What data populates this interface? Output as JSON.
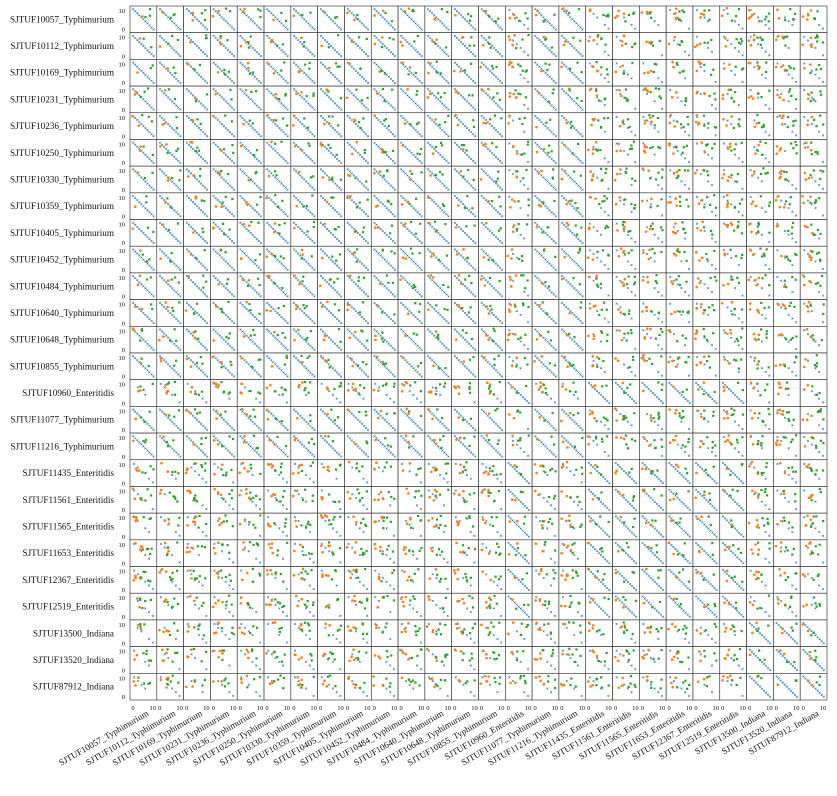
{
  "chart_data": {
    "type": "scatter",
    "layout": "pairwise-grid",
    "strains": [
      "SJTUF10057_Typhimurium",
      "SJTUF10112_Typhimurium",
      "SJTUF10169_Typhimurium",
      "SJTUF10231_Typhimurium",
      "SJTUF10236_Typhimurium",
      "SJTUF10250_Typhimurium",
      "SJTUF10330_Typhimurium",
      "SJTUF10359_Typhimurium",
      "SJTUF10405_Typhimurium",
      "SJTUF10452_Typhimurium",
      "SJTUF10484_Typhimurium",
      "SJTUF10640_Typhimurium",
      "SJTUF10648_Typhimurium",
      "SJTUF10855_Typhimurium",
      "SJTUF10960_Enteritidis",
      "SJTUF11077_Typhimurium",
      "SJTUF11216_Typhimurium",
      "SJTUF11435_Enteritidis",
      "SJTUF11561_Enteritidis",
      "SJTUF11565_Enteritidis",
      "SJTUF11653_Enteritidis",
      "SJTUF12367_Enteritidis",
      "SJTUF12519_Enteritidis",
      "SJTUF13500_Indiana",
      "SJTUF13520_Indiana",
      "SJTUF87912_Indiana"
    ],
    "xlim": [
      0,
      10
    ],
    "ylim": [
      0,
      10
    ],
    "y_tick_labels": [
      "10",
      "0"
    ],
    "x_tick_labels": [
      "0",
      "10"
    ],
    "markers": {
      "diagonal": "x",
      "orange": "o",
      "green": "s"
    },
    "colors": {
      "diagonal": "#1f77b4",
      "orange": "#ff7f0e",
      "green": "#2ca02c"
    }
  }
}
